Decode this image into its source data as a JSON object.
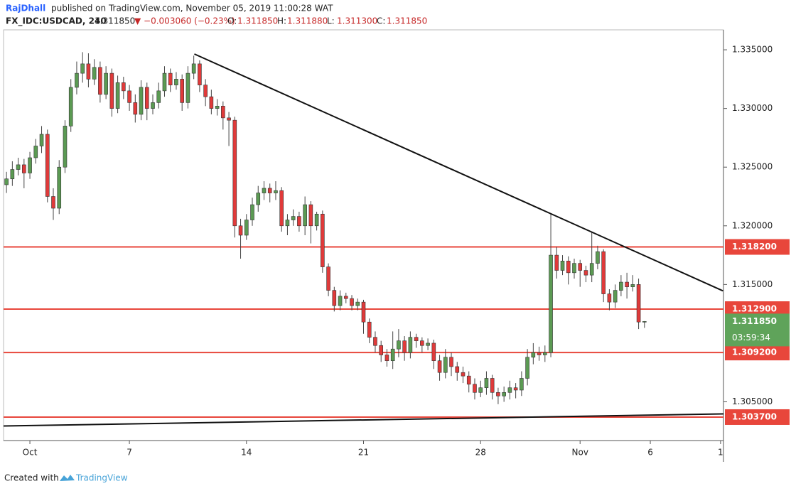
{
  "chart_data": {
    "type": "candlestick",
    "header": {
      "author": "RajDhall",
      "published": "published on TradingView.com, November 05, 2019 11:00:28 WAT",
      "symbol": "FX_IDC:USDCAD, 240",
      "last": "1.311850",
      "change": "▼ −0.003060 (−0.23%)",
      "ohlc": [
        {
          "label": "O:",
          "value": "1.311850"
        },
        {
          "label": "H:",
          "value": "1.311880"
        },
        {
          "label": "L:",
          "value": "1.311300"
        },
        {
          "label": "C:",
          "value": "1.311850"
        }
      ]
    },
    "footer": {
      "created": "Created with",
      "brand": "TradingView"
    },
    "up_color": "#5b9a53",
    "down_color": "#e03a3a",
    "open": [
      1.3235,
      1.324,
      1.3248,
      1.3252,
      1.3245,
      1.3258,
      1.3268,
      1.3278,
      1.3225,
      1.3215,
      1.325,
      1.3285,
      1.3318,
      1.333,
      1.3338,
      1.3325,
      1.3335,
      1.3312,
      1.333,
      1.33,
      1.3322,
      1.3315,
      1.3305,
      1.3295,
      1.3318,
      1.33,
      1.3305,
      1.3315,
      1.333,
      1.332,
      1.3325,
      1.3305,
      1.333,
      1.3338,
      1.332,
      1.331,
      1.33,
      1.3302,
      1.3292,
      1.329,
      1.32,
      1.3192,
      1.3205,
      1.3218,
      1.3228,
      1.3232,
      1.3228,
      1.323,
      1.32,
      1.3205,
      1.3208,
      1.32,
      1.3218,
      1.32,
      1.321,
      1.3165,
      1.3145,
      1.3132,
      1.314,
      1.3138,
      1.3132,
      1.3135,
      1.3118,
      1.3105,
      1.3098,
      1.309,
      1.3085,
      1.3095,
      1.3102,
      1.3092,
      1.3105,
      1.3102,
      1.3098,
      1.31,
      1.3085,
      1.3075,
      1.3088,
      1.308,
      1.3075,
      1.3072,
      1.3065,
      1.3058,
      1.3062,
      1.307,
      1.3058,
      1.3055,
      1.3058,
      1.3062,
      1.306,
      1.307,
      1.3088,
      1.3092,
      1.309,
      1.3092,
      1.3175,
      1.3162,
      1.317,
      1.316,
      1.3168,
      1.3162,
      1.3158,
      1.3168,
      1.3178,
      1.3142,
      1.3135,
      1.3145,
      1.3152,
      1.3148,
      1.315,
      1.31185
    ],
    "high": [
      1.3246,
      1.3255,
      1.3258,
      1.3257,
      1.3263,
      1.3274,
      1.3285,
      1.3282,
      1.3232,
      1.3256,
      1.329,
      1.3325,
      1.334,
      1.3348,
      1.3347,
      1.3342,
      1.334,
      1.3336,
      1.3334,
      1.3328,
      1.3327,
      1.332,
      1.3312,
      1.3324,
      1.3322,
      1.3312,
      1.3322,
      1.3336,
      1.3334,
      1.3331,
      1.3329,
      1.3336,
      1.3345,
      1.3341,
      1.3325,
      1.3316,
      1.3308,
      1.3306,
      1.3297,
      1.3293,
      1.3206,
      1.321,
      1.3224,
      1.3234,
      1.3238,
      1.3236,
      1.3238,
      1.3233,
      1.321,
      1.3214,
      1.3212,
      1.3225,
      1.3221,
      1.3212,
      1.3213,
      1.3168,
      1.3148,
      1.3145,
      1.3143,
      1.3141,
      1.3138,
      1.3137,
      1.3121,
      1.311,
      1.3102,
      1.3095,
      1.311,
      1.3112,
      1.3106,
      1.311,
      1.3108,
      1.3105,
      1.3104,
      1.3103,
      1.309,
      1.3095,
      1.3092,
      1.3084,
      1.308,
      1.3076,
      1.307,
      1.3068,
      1.3076,
      1.3073,
      1.3062,
      1.3063,
      1.3068,
      1.3066,
      1.3076,
      1.3095,
      1.31,
      1.3097,
      1.3098,
      1.321,
      1.3182,
      1.3175,
      1.3174,
      1.3172,
      1.3171,
      1.3166,
      1.3195,
      1.3183,
      1.318,
      1.3146,
      1.315,
      1.3158,
      1.316,
      1.3158,
      1.3155,
      1.31188
    ],
    "low": [
      1.3228,
      1.3234,
      1.3243,
      1.3232,
      1.324,
      1.3253,
      1.3262,
      1.322,
      1.3205,
      1.321,
      1.3245,
      1.328,
      1.3312,
      1.3322,
      1.3318,
      1.332,
      1.3305,
      1.3308,
      1.3293,
      1.3296,
      1.3308,
      1.3298,
      1.3288,
      1.329,
      1.329,
      1.3295,
      1.33,
      1.331,
      1.3314,
      1.3316,
      1.3298,
      1.33,
      1.3325,
      1.3314,
      1.3302,
      1.3295,
      1.3294,
      1.3282,
      1.3268,
      1.319,
      1.3172,
      1.3188,
      1.32,
      1.3212,
      1.3222,
      1.322,
      1.3222,
      1.3195,
      1.3192,
      1.32,
      1.3195,
      1.3192,
      1.3185,
      1.3196,
      1.316,
      1.314,
      1.3127,
      1.3128,
      1.3134,
      1.3128,
      1.3128,
      1.3108,
      1.31,
      1.3092,
      1.3084,
      1.308,
      1.3078,
      1.3088,
      1.3085,
      1.3087,
      1.3096,
      1.3092,
      1.3094,
      1.3078,
      1.3068,
      1.307,
      1.3072,
      1.3068,
      1.3066,
      1.3058,
      1.3052,
      1.3054,
      1.3056,
      1.3052,
      1.3048,
      1.305,
      1.3052,
      1.3053,
      1.3055,
      1.3064,
      1.3082,
      1.3085,
      1.3084,
      1.3088,
      1.3155,
      1.3158,
      1.315,
      1.3155,
      1.3148,
      1.3152,
      1.3152,
      1.3163,
      1.3135,
      1.3128,
      1.313,
      1.314,
      1.3138,
      1.3144,
      1.3112,
      1.3113
    ],
    "close": [
      1.324,
      1.3248,
      1.3252,
      1.3245,
      1.3258,
      1.3268,
      1.3278,
      1.3225,
      1.3215,
      1.325,
      1.3285,
      1.3318,
      1.333,
      1.3338,
      1.3325,
      1.3335,
      1.3312,
      1.333,
      1.33,
      1.3322,
      1.3315,
      1.3305,
      1.3295,
      1.3318,
      1.33,
      1.3305,
      1.3315,
      1.333,
      1.332,
      1.3325,
      1.3305,
      1.333,
      1.3338,
      1.332,
      1.331,
      1.33,
      1.3302,
      1.3292,
      1.329,
      1.32,
      1.3192,
      1.3205,
      1.3218,
      1.3228,
      1.3232,
      1.3228,
      1.323,
      1.32,
      1.3205,
      1.3208,
      1.32,
      1.3218,
      1.32,
      1.321,
      1.3165,
      1.3145,
      1.3132,
      1.314,
      1.3138,
      1.3132,
      1.3135,
      1.3118,
      1.3105,
      1.3098,
      1.309,
      1.3085,
      1.3095,
      1.3102,
      1.3092,
      1.3105,
      1.3102,
      1.3098,
      1.31,
      1.3085,
      1.3075,
      1.3088,
      1.308,
      1.3075,
      1.3072,
      1.3065,
      1.3058,
      1.3062,
      1.307,
      1.3058,
      1.3055,
      1.3058,
      1.3062,
      1.306,
      1.307,
      1.3088,
      1.3092,
      1.309,
      1.3092,
      1.3175,
      1.3162,
      1.317,
      1.316,
      1.3168,
      1.3162,
      1.3158,
      1.3168,
      1.3178,
      1.3142,
      1.3135,
      1.3145,
      1.3152,
      1.3148,
      1.315,
      1.3118,
      1.31185
    ],
    "xlim": [
      -0.5,
      122.5
    ],
    "xticks": [
      {
        "value": 4,
        "label": "Oct"
      },
      {
        "value": 21,
        "label": "7"
      },
      {
        "value": 41,
        "label": "14"
      },
      {
        "value": 61,
        "label": "21"
      },
      {
        "value": 81,
        "label": "28"
      },
      {
        "value": 98,
        "label": "Nov"
      },
      {
        "value": 110,
        "label": "6"
      },
      {
        "value": 122,
        "label": "1"
      }
    ],
    "ylim": [
      1.3017,
      1.3367
    ],
    "yticks": [
      {
        "value": 1.335,
        "label": "1.335000"
      },
      {
        "value": 1.33,
        "label": "1.330000"
      },
      {
        "value": 1.325,
        "label": "1.325000"
      },
      {
        "value": 1.32,
        "label": "1.320000"
      },
      {
        "value": 1.315,
        "label": "1.315000"
      },
      {
        "value": 1.305,
        "label": "1.305000"
      }
    ],
    "level_color": "#e8463b",
    "levels": [
      {
        "value": 1.3182,
        "label": "1.318200"
      },
      {
        "value": 1.3129,
        "label": "1.312900"
      },
      {
        "value": 1.3092,
        "label": "1.309200"
      },
      {
        "value": 1.3037,
        "label": "1.303700"
      }
    ],
    "current": {
      "value": 1.31185,
      "label": "1.311850",
      "countdown": "03:59:34",
      "color": "#5fa35a"
    },
    "trendlines": [
      {
        "x": [
          32.1,
          122.4
        ],
        "y": [
          1.33464,
          1.31446
        ]
      },
      {
        "x": [
          -0.5,
          122.5
        ],
        "y": [
          1.30294,
          1.30397
        ]
      }
    ]
  }
}
